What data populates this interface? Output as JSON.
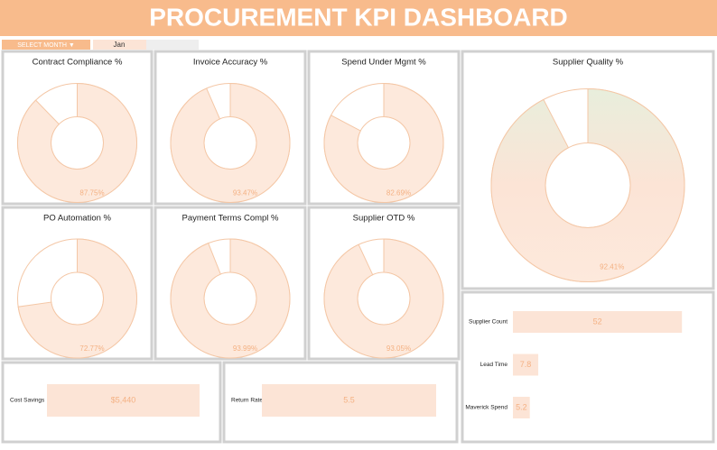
{
  "header": {
    "title": "PROCUREMENT KPI DASHBOARD"
  },
  "filter": {
    "label": "SELECT MONTH ▼",
    "value": "Jan"
  },
  "chart_data": [
    {
      "type": "pie",
      "title": "Contract Compliance %",
      "values": [
        87.75
      ],
      "value_labels": [
        "87.75%"
      ]
    },
    {
      "type": "pie",
      "title": "Invoice Accuracy %",
      "values": [
        93.47
      ],
      "value_labels": [
        "93.47%"
      ]
    },
    {
      "type": "pie",
      "title": "Spend Under Mgmt %",
      "values": [
        82.69
      ],
      "value_labels": [
        "82.69%"
      ]
    },
    {
      "type": "pie",
      "title": "Supplier Quality %",
      "values": [
        92.41
      ],
      "value_labels": [
        "92.41%"
      ]
    },
    {
      "type": "pie",
      "title": "PO Automation %",
      "values": [
        72.77
      ],
      "value_labels": [
        "72.77%"
      ]
    },
    {
      "type": "pie",
      "title": "Payment Terms Compl %",
      "values": [
        93.99
      ],
      "value_labels": [
        "93.99%"
      ]
    },
    {
      "type": "pie",
      "title": "Supplier OTD %",
      "values": [
        93.05
      ],
      "value_labels": [
        "93.05%"
      ]
    },
    {
      "type": "bar",
      "orientation": "horizontal",
      "categories": [
        "Supplier Count",
        "Lead Time",
        "Maverick Spend"
      ],
      "values": [
        52,
        7.8,
        5.2
      ],
      "color": "#fce4d6"
    }
  ],
  "kpis": [
    {
      "label": "Cost Savings",
      "value": "$5,440"
    },
    {
      "label": "Return Rate",
      "value": "5.5"
    }
  ]
}
